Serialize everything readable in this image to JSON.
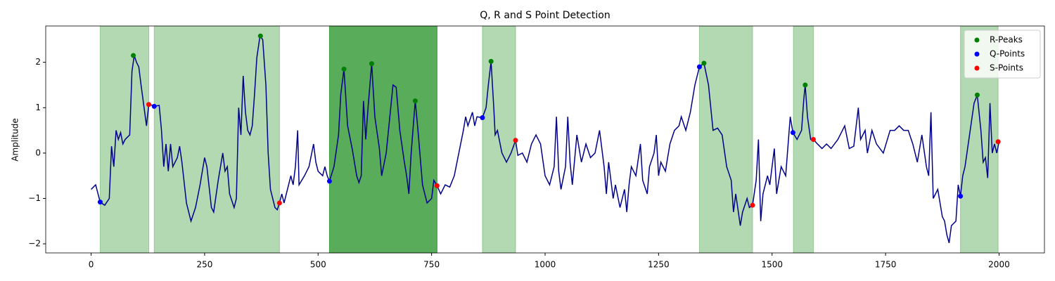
{
  "chart_data": {
    "type": "line",
    "title": "Q, R and S Point Detection",
    "y_label": "Amplitude",
    "xlim": [
      -100,
      2100
    ],
    "ylim": [
      -2.2,
      2.8
    ],
    "xticks": [
      0,
      250,
      500,
      750,
      1000,
      1250,
      1500,
      1750,
      2000
    ],
    "yticks": [
      {
        "value": -2,
        "label": "−2"
      },
      {
        "value": -1,
        "label": "−1"
      },
      0,
      1,
      2
    ],
    "legend": "upper right",
    "span_color": "green",
    "spans": [
      {
        "x0": 20,
        "x1": 127,
        "opacity": 0.3
      },
      {
        "x0": 139,
        "x1": 415,
        "opacity": 0.3
      },
      {
        "x0": 525,
        "x1": 762,
        "opacity": 0.65
      },
      {
        "x0": 862,
        "x1": 935,
        "opacity": 0.3
      },
      {
        "x0": 1340,
        "x1": 1457,
        "opacity": 0.3
      },
      {
        "x0": 1547,
        "x1": 1591,
        "opacity": 0.3
      },
      {
        "x0": 1915,
        "x1": 1998,
        "opacity": 0.3
      }
    ],
    "signal": {
      "color": "#00008b",
      "x": [
        0,
        10,
        20,
        30,
        40,
        45,
        50,
        55,
        60,
        65,
        70,
        75,
        85,
        90,
        95,
        100,
        105,
        110,
        118,
        122,
        127,
        135,
        139,
        150,
        155,
        160,
        165,
        170,
        175,
        180,
        190,
        195,
        200,
        210,
        220,
        230,
        240,
        250,
        255,
        265,
        270,
        280,
        290,
        295,
        300,
        305,
        315,
        320,
        325,
        330,
        335,
        340,
        345,
        350,
        355,
        360,
        365,
        372,
        378,
        385,
        390,
        395,
        400,
        405,
        410,
        415,
        420,
        425,
        430,
        440,
        445,
        450,
        455,
        458,
        470,
        480,
        490,
        495,
        500,
        510,
        515,
        520,
        525,
        535,
        545,
        550,
        557,
        565,
        575,
        585,
        590,
        595,
        600,
        605,
        610,
        618,
        625,
        635,
        640,
        650,
        660,
        665,
        672,
        680,
        690,
        695,
        700,
        705,
        714,
        720,
        730,
        740,
        750,
        755,
        762,
        770,
        780,
        790,
        800,
        810,
        820,
        825,
        830,
        840,
        845,
        850,
        862,
        870,
        875,
        881,
        887,
        890,
        895,
        905,
        915,
        925,
        935,
        940,
        950,
        960,
        970,
        980,
        990,
        1000,
        1010,
        1020,
        1025,
        1030,
        1035,
        1045,
        1050,
        1055,
        1060,
        1070,
        1080,
        1090,
        1100,
        1110,
        1120,
        1130,
        1135,
        1140,
        1150,
        1155,
        1165,
        1175,
        1180,
        1185,
        1190,
        1200,
        1210,
        1215,
        1225,
        1230,
        1240,
        1245,
        1250,
        1255,
        1265,
        1275,
        1285,
        1295,
        1300,
        1310,
        1320,
        1330,
        1340,
        1350,
        1360,
        1365,
        1370,
        1380,
        1390,
        1400,
        1410,
        1415,
        1420,
        1430,
        1435,
        1445,
        1450,
        1457,
        1465,
        1470,
        1475,
        1480,
        1490,
        1495,
        1505,
        1510,
        1520,
        1530,
        1540,
        1546,
        1555,
        1565,
        1570,
        1573,
        1578,
        1585,
        1591,
        1600,
        1610,
        1620,
        1630,
        1645,
        1655,
        1660,
        1670,
        1680,
        1690,
        1695,
        1705,
        1710,
        1720,
        1730,
        1745,
        1760,
        1770,
        1780,
        1790,
        1800,
        1810,
        1820,
        1830,
        1840,
        1845,
        1850,
        1855,
        1865,
        1875,
        1880,
        1885,
        1890,
        1895,
        1905,
        1910,
        1915,
        1920,
        1925,
        1935,
        1945,
        1952,
        1960,
        1965,
        1970,
        1975,
        1980,
        1985,
        1990,
        1995,
        2000
      ],
      "y": [
        -0.8,
        -0.7,
        -1.08,
        -1.15,
        -1.0,
        0.15,
        -0.3,
        0.5,
        0.3,
        0.45,
        0.2,
        0.3,
        0.4,
        1.8,
        2.15,
        2.0,
        1.9,
        1.5,
        0.9,
        0.6,
        1.07,
        1.05,
        1.03,
        1.05,
        0.5,
        -0.3,
        0.2,
        -0.4,
        0.2,
        -0.3,
        -0.1,
        0.15,
        -0.2,
        -1.1,
        -1.5,
        -1.2,
        -0.7,
        -0.1,
        -0.3,
        -1.2,
        -1.3,
        -0.6,
        0.0,
        -0.4,
        -0.3,
        -0.9,
        -1.2,
        -1.0,
        1.0,
        0.4,
        1.7,
        0.9,
        0.5,
        0.4,
        0.6,
        1.3,
        2.1,
        2.58,
        2.5,
        1.5,
        0.0,
        -0.8,
        -1.0,
        -1.2,
        -1.25,
        -1.1,
        -0.9,
        -1.1,
        -0.9,
        -0.5,
        -0.7,
        -0.3,
        0.5,
        -0.7,
        -0.5,
        -0.3,
        0.2,
        -0.2,
        -0.4,
        -0.5,
        -0.3,
        -0.5,
        -0.62,
        -0.3,
        0.4,
        1.3,
        1.85,
        0.6,
        0.1,
        -0.5,
        -0.65,
        -0.5,
        1.15,
        0.3,
        1.0,
        1.97,
        0.8,
        0.1,
        -0.5,
        0.0,
        1.0,
        1.5,
        1.45,
        0.5,
        -0.2,
        -0.5,
        -0.9,
        0.0,
        1.15,
        0.5,
        -0.7,
        -1.1,
        -1.0,
        -0.6,
        -0.72,
        -0.9,
        -0.7,
        -0.75,
        -0.5,
        0.0,
        0.5,
        0.8,
        0.6,
        0.9,
        0.6,
        0.8,
        0.78,
        1.0,
        1.5,
        2.02,
        1.0,
        0.4,
        0.5,
        0.0,
        -0.2,
        0.0,
        0.28,
        -0.05,
        0.0,
        -0.2,
        0.2,
        0.4,
        0.2,
        -0.5,
        -0.7,
        -0.3,
        0.8,
        -0.4,
        -0.8,
        -0.3,
        0.8,
        -0.2,
        -0.7,
        0.4,
        -0.2,
        0.2,
        -0.1,
        0.0,
        0.5,
        -0.3,
        -0.9,
        -0.2,
        -1.0,
        -0.7,
        -1.2,
        -0.8,
        -1.3,
        -0.7,
        -0.3,
        -0.5,
        0.2,
        -0.6,
        -0.9,
        -0.3,
        0.0,
        0.4,
        -0.5,
        -0.2,
        -0.4,
        0.2,
        0.5,
        0.6,
        0.8,
        0.5,
        0.9,
        1.5,
        1.9,
        1.98,
        1.5,
        1.0,
        0.5,
        0.55,
        0.4,
        -0.3,
        -0.6,
        -1.3,
        -0.9,
        -1.6,
        -1.3,
        -1.0,
        -1.2,
        -1.15,
        -0.6,
        0.3,
        -1.5,
        -0.9,
        -0.5,
        -0.7,
        0.1,
        -0.9,
        -0.3,
        -0.5,
        0.8,
        0.45,
        0.3,
        0.5,
        1.2,
        1.5,
        0.8,
        0.3,
        0.3,
        0.2,
        0.1,
        0.2,
        0.1,
        0.3,
        0.5,
        0.6,
        0.1,
        0.15,
        1.0,
        0.3,
        0.5,
        0.0,
        0.5,
        0.2,
        0.0,
        0.5,
        0.5,
        0.6,
        0.5,
        0.5,
        0.2,
        -0.2,
        0.4,
        -0.3,
        -0.5,
        0.9,
        -1.0,
        -0.8,
        -1.4,
        -1.5,
        -1.8,
        -1.98,
        -1.6,
        -1.5,
        -0.7,
        -0.95,
        -0.5,
        -0.3,
        0.4,
        1.1,
        1.28,
        0.5,
        -0.2,
        -0.1,
        -0.55,
        1.1,
        0.0,
        0.2,
        0.0,
        0.25
      ]
    },
    "series": [
      {
        "name": "R-Peaks",
        "color": "green",
        "x": [
          93,
          373,
          557,
          618,
          714,
          881,
          1350,
          1573,
          1952
        ],
        "y": [
          2.15,
          2.58,
          1.85,
          1.97,
          1.15,
          2.02,
          1.98,
          1.5,
          1.28
        ]
      },
      {
        "name": "Q-Points",
        "color": "blue",
        "x": [
          20,
          139,
          525,
          862,
          1340,
          1546,
          1915
        ],
        "y": [
          -1.08,
          1.03,
          -0.62,
          0.78,
          1.9,
          0.45,
          -0.95
        ]
      },
      {
        "name": "S-Points",
        "color": "red",
        "x": [
          127,
          415,
          762,
          935,
          1457,
          1591,
          1998
        ],
        "y": [
          1.07,
          -1.1,
          -0.72,
          0.28,
          -1.15,
          0.3,
          0.25
        ]
      }
    ]
  }
}
